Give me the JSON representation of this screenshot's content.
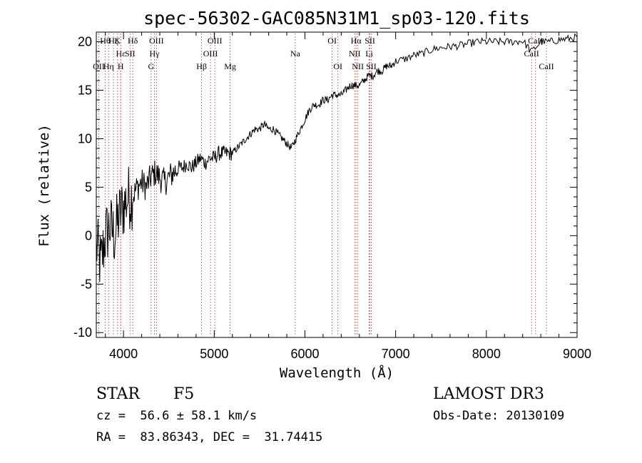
{
  "chart_data": {
    "type": "line",
    "title": "spec-56302-GAC085N31M1_sp03-120.fits",
    "xlabel": "Wavelength (Å)",
    "ylabel": "Flux (relative)",
    "xlim": [
      3700,
      9000
    ],
    "ylim": [
      -10.5,
      21
    ],
    "xticks": [
      4000,
      5000,
      6000,
      7000,
      8000,
      9000
    ],
    "yticks": [
      -10,
      -5,
      0,
      5,
      10,
      15,
      20
    ],
    "grid": false,
    "series": [
      {
        "name": "spectrum",
        "color": "#000000",
        "x": [
          3700,
          3750,
          3800,
          3850,
          3900,
          3950,
          4000,
          4050,
          4100,
          4150,
          4200,
          4250,
          4300,
          4350,
          4400,
          4450,
          4500,
          4550,
          4600,
          4650,
          4700,
          4750,
          4800,
          4850,
          4900,
          4950,
          5000,
          5050,
          5100,
          5150,
          5200,
          5250,
          5300,
          5350,
          5400,
          5450,
          5500,
          5550,
          5600,
          5650,
          5700,
          5750,
          5800,
          5850,
          5900,
          5950,
          6000,
          6050,
          6100,
          6150,
          6200,
          6250,
          6300,
          6350,
          6400,
          6450,
          6500,
          6550,
          6600,
          6650,
          6700,
          6750,
          6800,
          6850,
          6900,
          6950,
          7000,
          7100,
          7200,
          7300,
          7400,
          7500,
          7600,
          7700,
          7800,
          7900,
          8000,
          8100,
          8200,
          8300,
          8400,
          8500,
          8600,
          8700,
          8800,
          8900,
          9000
        ],
        "y": [
          -1,
          -3,
          0,
          1,
          0,
          2,
          3,
          4,
          4,
          5,
          5.5,
          5,
          6,
          6.5,
          6,
          5.5,
          6,
          6.5,
          7,
          7,
          7.5,
          7,
          7.5,
          8,
          7.5,
          8,
          8,
          8.5,
          8.5,
          8.5,
          8.5,
          9,
          9.5,
          10,
          10.5,
          11,
          11,
          11.5,
          11,
          11,
          10.5,
          10,
          9.5,
          9,
          10,
          11,
          12,
          13,
          13.5,
          13.5,
          14,
          14,
          14.5,
          14.5,
          14.5,
          15,
          15.5,
          15.5,
          15.5,
          16,
          16.5,
          16.5,
          17,
          17,
          17.5,
          17.5,
          18,
          18.2,
          18.6,
          18.8,
          19.2,
          19.4,
          19.5,
          19.6,
          19.8,
          20,
          20,
          20,
          20,
          20,
          20.1,
          19,
          20,
          20,
          20.2,
          20.3,
          20.5
        ]
      }
    ],
    "annotation_lines": [
      {
        "wavelength": 3727,
        "label": "OII",
        "row": 2
      },
      {
        "wavelength": 3798,
        "label": "Hθ",
        "row": 0
      },
      {
        "wavelength": 3835,
        "label": "Hη",
        "row": 2
      },
      {
        "wavelength": 3889,
        "label": "Hζ",
        "row": 0
      },
      {
        "wavelength": 3934,
        "label": "K",
        "row": 0
      },
      {
        "wavelength": 3970,
        "label": "Hε",
        "row": 1
      },
      {
        "wavelength": 3969,
        "label": "H",
        "row": 2
      },
      {
        "wavelength": 4072,
        "label": "SII",
        "row": 1
      },
      {
        "wavelength": 4102,
        "label": "Hδ",
        "row": 0
      },
      {
        "wavelength": 4304,
        "label": "G",
        "row": 2
      },
      {
        "wavelength": 4341,
        "label": "Hγ",
        "row": 1
      },
      {
        "wavelength": 4363,
        "label": "OIII",
        "row": 0
      },
      {
        "wavelength": 4861,
        "label": "Hβ",
        "row": 2
      },
      {
        "wavelength": 4959,
        "label": "OIII",
        "row": 1
      },
      {
        "wavelength": 5007,
        "label": "OIII",
        "row": 0
      },
      {
        "wavelength": 5175,
        "label": "Mg",
        "row": 2
      },
      {
        "wavelength": 5893,
        "label": "Na",
        "row": 1
      },
      {
        "wavelength": 6300,
        "label": "OI",
        "row": 0
      },
      {
        "wavelength": 6363,
        "label": "OI",
        "row": 2
      },
      {
        "wavelength": 6548,
        "label": "NII",
        "row": 1
      },
      {
        "wavelength": 6563,
        "label": "Hα",
        "row": 0
      },
      {
        "wavelength": 6583,
        "label": "NII",
        "row": 2
      },
      {
        "wavelength": 6708,
        "label": "Li",
        "row": 1
      },
      {
        "wavelength": 6716,
        "label": "SII",
        "row": 0
      },
      {
        "wavelength": 6731,
        "label": "SII",
        "row": 2
      },
      {
        "wavelength": 8498,
        "label": "CaII",
        "row": 1
      },
      {
        "wavelength": 8542,
        "label": "CaII",
        "row": 0
      },
      {
        "wavelength": 8662,
        "label": "CaII",
        "row": 2
      }
    ]
  },
  "footer": {
    "object_type": "STAR",
    "subclass": "F5",
    "survey": "LAMOST DR3",
    "cz": "cz =  56.6 ± 58.1 km/s",
    "obs_date": "Obs-Date: 20130109",
    "coords": "RA =  83.86343, DEC =  31.74415"
  }
}
